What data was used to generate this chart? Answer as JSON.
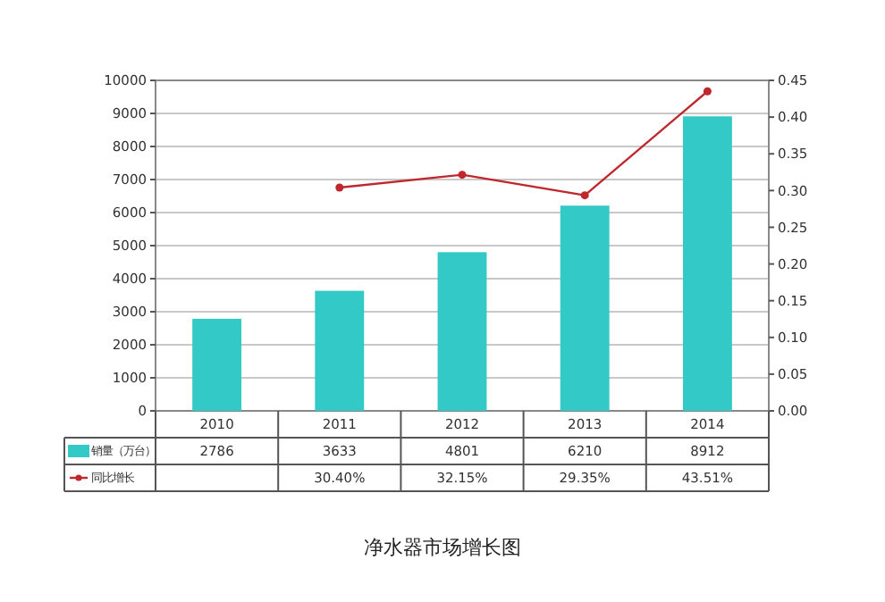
{
  "chart_data": {
    "type": "bar",
    "title": "净水器市场增长图",
    "categories": [
      "2010",
      "2011",
      "2012",
      "2013",
      "2014"
    ],
    "series": [
      {
        "name": "销量（万台）",
        "color": "#33c9c6",
        "values": [
          2786,
          3633,
          4801,
          6210,
          8912
        ]
      },
      {
        "name": "同比增长",
        "type": "line",
        "axis": "y2",
        "color": "#c0272d",
        "values": [
          null,
          0.304,
          0.3215,
          0.2935,
          0.4351
        ],
        "value_labels": [
          null,
          "30.40%",
          "32.15%",
          "29.35%",
          "43.51%"
        ]
      }
    ],
    "ylim": [
      0,
      10000
    ],
    "yticks": [
      0,
      1000,
      2000,
      3000,
      4000,
      5000,
      6000,
      7000,
      8000,
      9000,
      10000
    ],
    "y2lim": [
      0,
      0.45
    ],
    "y2ticks": [
      {
        "value": 0,
        "label": "0.00"
      },
      {
        "value": 0.05,
        "label": "0.05"
      },
      {
        "value": 0.1,
        "label": "0.10"
      },
      {
        "value": 0.15,
        "label": "0.15"
      },
      {
        "value": 0.2,
        "label": "0.20"
      },
      {
        "value": 0.25,
        "label": "0.25"
      },
      {
        "value": 0.3,
        "label": "0.30"
      },
      {
        "value": 0.35,
        "label": "0.35"
      },
      {
        "value": 0.4,
        "label": "0.40"
      },
      {
        "value": 0.45,
        "label": "0.45"
      }
    ],
    "grid": "y",
    "legend": "bottom",
    "marker": "circle",
    "data_labels": true
  }
}
